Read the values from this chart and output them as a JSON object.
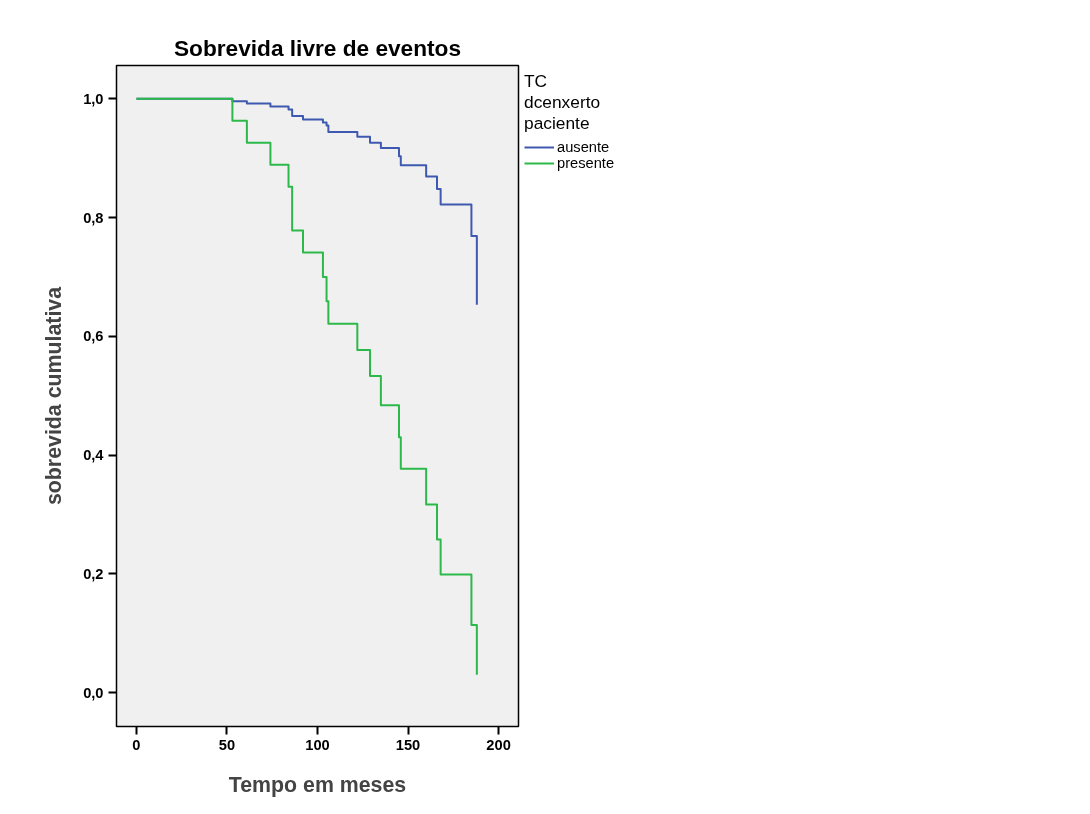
{
  "chart_data": {
    "type": "step",
    "title": "Sobrevida livre de eventos",
    "xlabel": "Tempo em meses",
    "ylabel": "sobrevida cumulativa",
    "legend_title": "TC dcenxerto paciente",
    "legend": "right",
    "xlim": [
      -11,
      211
    ],
    "ylim": [
      -0.057,
      1.056
    ],
    "xticks": [
      0,
      50,
      100,
      150,
      200
    ],
    "yticks": [
      {
        "value": 0,
        "label": "0,0"
      },
      {
        "value": 0.2,
        "label": "0,2"
      },
      {
        "value": 0.4,
        "label": "0,4"
      },
      {
        "value": 0.6,
        "label": "0,6"
      },
      {
        "value": 0.8,
        "label": "0,8"
      },
      {
        "value": 1.0,
        "label": "1,0"
      }
    ],
    "grid": false,
    "series": [
      {
        "name": "ausente",
        "color": "#3f58b0",
        "x": [
          0,
          53,
          61,
          74,
          84,
          86,
          92,
          103,
          105,
          106,
          122,
          129,
          135,
          145,
          146,
          160,
          166,
          168,
          185,
          188
        ],
        "values": [
          1.0,
          0.996,
          0.992,
          0.987,
          0.982,
          0.971,
          0.965,
          0.96,
          0.955,
          0.944,
          0.936,
          0.926,
          0.917,
          0.903,
          0.888,
          0.869,
          0.848,
          0.822,
          0.769,
          0.653
        ]
      },
      {
        "name": "presente",
        "color": "#2db84a",
        "x": [
          0,
          53,
          61,
          74,
          84,
          86,
          92,
          103,
          105,
          106,
          122,
          129,
          135,
          145,
          146,
          160,
          166,
          168,
          185,
          188
        ],
        "values": [
          1.0,
          0.963,
          0.926,
          0.889,
          0.852,
          0.778,
          0.741,
          0.7,
          0.659,
          0.621,
          0.577,
          0.533,
          0.484,
          0.43,
          0.377,
          0.317,
          0.258,
          0.199,
          0.114,
          0.03
        ]
      }
    ]
  }
}
